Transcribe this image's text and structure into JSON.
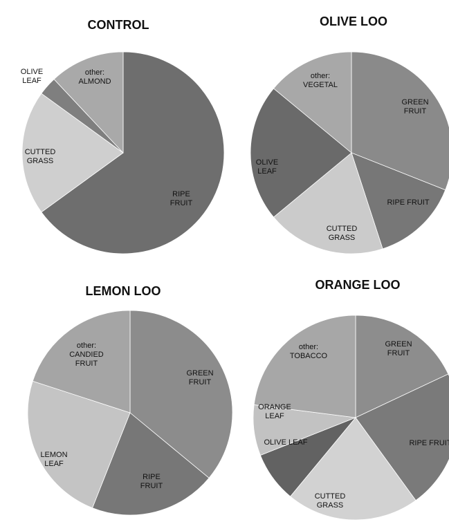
{
  "chart_data": [
    {
      "type": "pie",
      "title": "CONTROL",
      "slices": [
        {
          "label": "RIPE FRUIT",
          "value": 65,
          "color": "#6e6e6e"
        },
        {
          "label": "CUTTED GRASS",
          "value": 20,
          "color": "#cfcfcf"
        },
        {
          "label": "OLIVE LEAF",
          "value": 3,
          "color": "#7f7f7f"
        },
        {
          "label": "other: ALMOND",
          "value": 12,
          "color": "#a9a9a9"
        }
      ]
    },
    {
      "type": "pie",
      "title": "OLIVE LOO",
      "slices": [
        {
          "label": "GREEN FRUIT",
          "value": 31,
          "color": "#8a8a8a"
        },
        {
          "label": "RIPE FRUIT",
          "value": 14,
          "color": "#777777"
        },
        {
          "label": "CUTTED GRASS",
          "value": 19,
          "color": "#cbcbcb"
        },
        {
          "label": "OLIVE LEAF",
          "value": 22,
          "color": "#6a6a6a"
        },
        {
          "label": "other: VEGETAL",
          "value": 14,
          "color": "#a8a8a8"
        }
      ]
    },
    {
      "type": "pie",
      "title": "LEMON LOO",
      "slices": [
        {
          "label": "GREEN FRUIT",
          "value": 36,
          "color": "#8c8c8c"
        },
        {
          "label": "RIPE FRUIT",
          "value": 20,
          "color": "#777777"
        },
        {
          "label": "LEMON LEAF",
          "value": 24,
          "color": "#c4c4c4"
        },
        {
          "label": "other: CANDIED FRUIT",
          "value": 20,
          "color": "#a5a5a5"
        }
      ]
    },
    {
      "type": "pie",
      "title": "ORANGE LOO",
      "slices": [
        {
          "label": "GREEN FRUIT",
          "value": 18,
          "color": "#8d8d8d"
        },
        {
          "label": "RIPE FRUIT",
          "value": 22,
          "color": "#7a7a7a"
        },
        {
          "label": "CUTTED GRASS",
          "value": 21,
          "color": "#d2d2d2"
        },
        {
          "label": "OLIVE LEAF",
          "value": 8,
          "color": "#626262"
        },
        {
          "label": "ORANGE LEAF",
          "value": 8,
          "color": "#c2c2c2"
        },
        {
          "label": "other: TOBACCO",
          "value": 23,
          "color": "#a7a7a7"
        }
      ]
    }
  ]
}
